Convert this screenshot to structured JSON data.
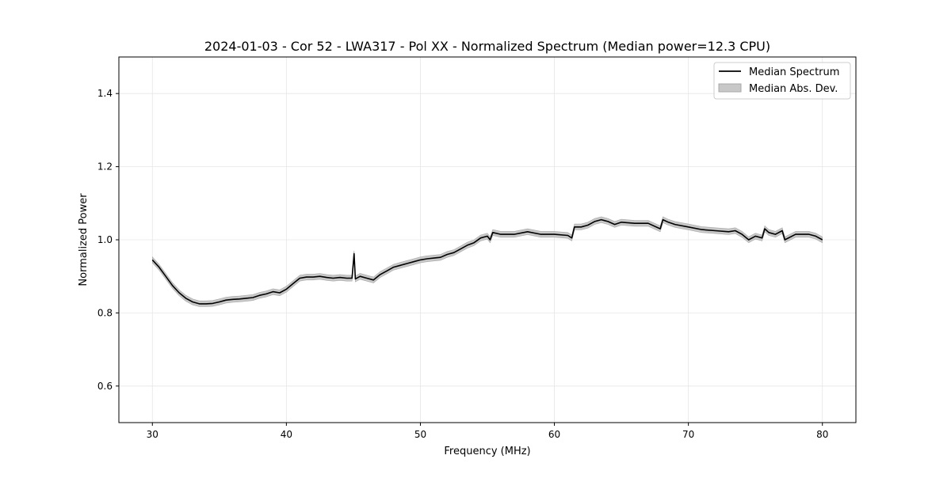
{
  "chart_data": {
    "type": "line",
    "title": "2024-01-03 - Cor 52 - LWA317 - Pol XX - Normalized Spectrum (Median power=12.3 CPU)",
    "xlabel": "Frequency (MHz)",
    "ylabel": "Normalized Power",
    "xlim": [
      27.5,
      82.5
    ],
    "ylim": [
      0.5,
      1.5
    ],
    "xticks": [
      30,
      40,
      50,
      60,
      70,
      80
    ],
    "xtick_labels": [
      "30",
      "40",
      "50",
      "60",
      "70",
      "80"
    ],
    "yticks": [
      0.6,
      0.8,
      1.0,
      1.2,
      1.4
    ],
    "ytick_labels": [
      "0.6",
      "0.8",
      "1.0",
      "1.2",
      "1.4"
    ],
    "grid": true,
    "legend_position": "top-right",
    "legend": [
      "Median Spectrum",
      "Median Abs. Dev."
    ],
    "colors": {
      "line": "#000000",
      "band": "#c8c8c8",
      "band_edge": "#a0a0a0",
      "grid": "#e6e6e6"
    },
    "mad": 0.008,
    "series": [
      {
        "name": "Median Spectrum",
        "x": [
          30,
          30.5,
          31,
          31.5,
          32,
          32.5,
          33,
          33.5,
          34,
          34.5,
          35,
          35.5,
          36,
          36.5,
          37,
          37.5,
          38,
          38.5,
          39,
          39.5,
          40,
          40.5,
          41,
          41.5,
          42,
          42.5,
          43,
          43.5,
          44,
          44.5,
          44.9,
          45.05,
          45.15,
          45.5,
          46,
          46.5,
          47,
          47.5,
          48,
          48.5,
          49,
          49.5,
          50,
          50.5,
          51,
          51.5,
          52,
          52.5,
          53,
          53.5,
          54,
          54.5,
          55,
          55.2,
          55.4,
          56,
          57,
          58,
          59,
          60,
          61,
          61.3,
          61.5,
          62,
          62.5,
          63,
          63.5,
          64,
          64.5,
          65,
          66,
          67,
          67.9,
          68.1,
          68.5,
          69,
          70,
          71,
          72,
          73,
          73.5,
          74,
          74.5,
          75,
          75.5,
          75.7,
          76,
          76.5,
          77,
          77.2,
          78,
          79,
          79.5,
          80
        ],
        "y": [
          0.945,
          0.925,
          0.9,
          0.875,
          0.855,
          0.84,
          0.83,
          0.825,
          0.825,
          0.826,
          0.83,
          0.835,
          0.837,
          0.838,
          0.84,
          0.842,
          0.848,
          0.852,
          0.858,
          0.855,
          0.865,
          0.88,
          0.895,
          0.898,
          0.898,
          0.9,
          0.897,
          0.895,
          0.897,
          0.895,
          0.895,
          0.962,
          0.893,
          0.9,
          0.895,
          0.89,
          0.905,
          0.915,
          0.925,
          0.93,
          0.935,
          0.94,
          0.945,
          0.948,
          0.95,
          0.952,
          0.96,
          0.965,
          0.975,
          0.985,
          0.992,
          1.005,
          1.01,
          1.0,
          1.02,
          1.015,
          1.015,
          1.022,
          1.015,
          1.015,
          1.012,
          1.005,
          1.035,
          1.035,
          1.04,
          1.05,
          1.055,
          1.05,
          1.042,
          1.048,
          1.045,
          1.045,
          1.03,
          1.055,
          1.048,
          1.042,
          1.035,
          1.028,
          1.025,
          1.022,
          1.025,
          1.015,
          1.0,
          1.01,
          1.005,
          1.03,
          1.02,
          1.015,
          1.025,
          1.0,
          1.015,
          1.015,
          1.01,
          1.0
        ]
      }
    ]
  }
}
